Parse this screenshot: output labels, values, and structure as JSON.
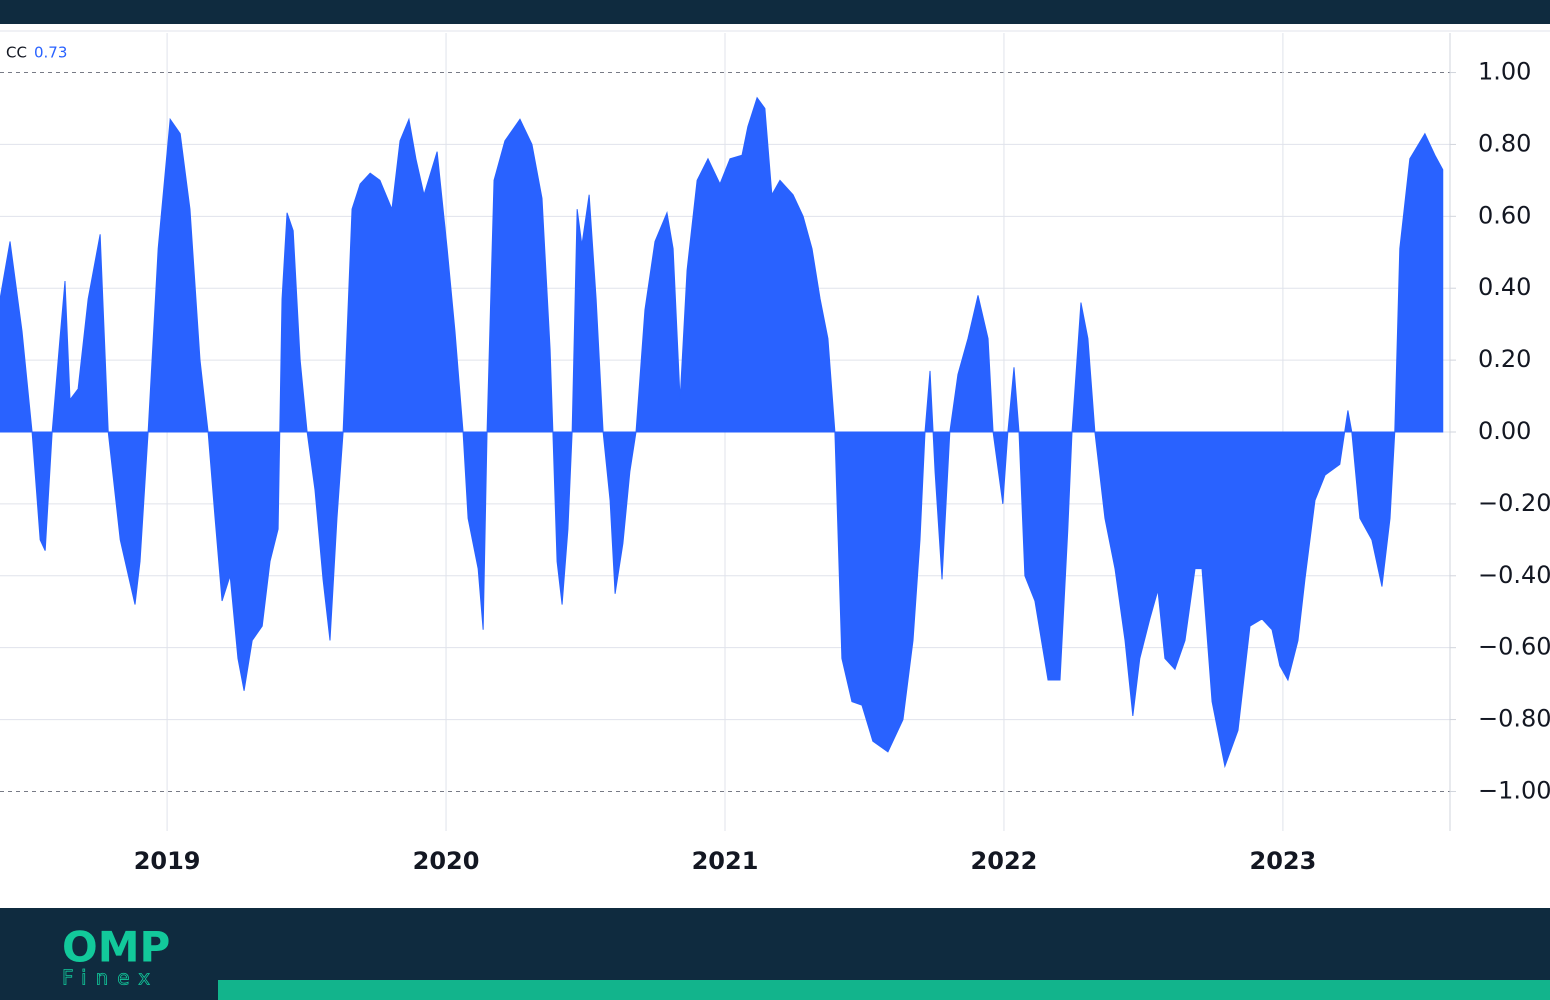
{
  "chart_data": {
    "type": "area",
    "xlim": [
      2018.401,
      2023.599
    ],
    "xticks": [
      2019,
      2020,
      2021,
      2022,
      2023
    ],
    "ylim": [
      -1.11,
      1.11
    ],
    "yticks": [
      {
        "value": 1,
        "label": "1.00"
      },
      {
        "value": 0.8,
        "label": "0.80"
      },
      {
        "value": 0.6,
        "label": "0.60"
      },
      {
        "value": 0.4,
        "label": "0.40"
      },
      {
        "value": 0.2,
        "label": "0.20"
      },
      {
        "value": 0,
        "label": "0.00"
      },
      {
        "value": -0.2,
        "label": "−0.20"
      },
      {
        "value": -0.4,
        "label": "−0.40"
      },
      {
        "value": -0.6,
        "label": "−0.60"
      },
      {
        "value": -0.8,
        "label": "−0.80"
      },
      {
        "value": -1,
        "label": "−1.00"
      }
    ],
    "dashed_lines": [
      1,
      -1
    ],
    "grid": true,
    "series": [
      {
        "name": "CC",
        "color": "#2962ff",
        "x": [
          2018.401,
          2018.437,
          2018.48,
          2018.516,
          2018.545,
          2018.563,
          2018.588,
          2018.616,
          2018.634,
          2018.652,
          2018.681,
          2018.717,
          2018.76,
          2018.789,
          2018.832,
          2018.885,
          2018.903,
          2018.932,
          2018.968,
          2019.011,
          2019.047,
          2019.082,
          2019.118,
          2019.147,
          2019.172,
          2019.197,
          2019.226,
          2019.254,
          2019.276,
          2019.305,
          2019.341,
          2019.369,
          2019.398,
          2019.412,
          2019.43,
          2019.452,
          2019.477,
          2019.502,
          2019.53,
          2019.559,
          2019.584,
          2019.609,
          2019.631,
          2019.663,
          2019.692,
          2019.728,
          2019.763,
          2019.806,
          2019.835,
          2019.867,
          2019.892,
          2019.921,
          2019.968,
          2020.004,
          2020.032,
          2020.061,
          2020.079,
          2020.115,
          2020.133,
          2020.147,
          2020.172,
          2020.211,
          2020.265,
          2020.308,
          2020.344,
          2020.373,
          2020.383,
          2020.398,
          2020.416,
          2020.437,
          2020.452,
          2020.47,
          2020.487,
          2020.513,
          2020.538,
          2020.563,
          2020.588,
          2020.606,
          2020.634,
          2020.659,
          2020.681,
          2020.713,
          2020.749,
          2020.792,
          2020.814,
          2020.839,
          2020.864,
          2020.9,
          2020.939,
          2020.982,
          2021.018,
          2021.061,
          2021.082,
          2021.115,
          2021.143,
          2021.168,
          2021.197,
          2021.244,
          2021.28,
          2021.312,
          2021.341,
          2021.369,
          2021.394,
          2021.419,
          2021.455,
          2021.491,
          2021.53,
          2021.584,
          2021.638,
          2021.674,
          2021.699,
          2021.717,
          2021.735,
          2021.753,
          2021.778,
          2021.806,
          2021.835,
          2021.871,
          2021.907,
          2021.943,
          2021.961,
          2021.996,
          2022.014,
          2022.036,
          2022.054,
          2022.075,
          2022.111,
          2022.158,
          2022.201,
          2022.229,
          2022.244,
          2022.276,
          2022.301,
          2022.326,
          2022.362,
          2022.398,
          2022.434,
          2022.462,
          2022.487,
          2022.523,
          2022.552,
          2022.577,
          2022.613,
          2022.649,
          2022.685,
          2022.71,
          2022.746,
          2022.792,
          2022.839,
          2022.882,
          2022.925,
          2022.961,
          2022.989,
          2023.018,
          2023.054,
          2023.079,
          2023.115,
          2023.151,
          2023.204,
          2023.233,
          2023.247,
          2023.276,
          2023.319,
          2023.355,
          2023.384,
          2023.401,
          2023.419,
          2023.455,
          2023.509,
          2023.545,
          2023.573
        ],
        "values": [
          0.37,
          0.53,
          0.28,
          0,
          -0.3,
          -0.33,
          0,
          0.26,
          0.42,
          0.09,
          0.12,
          0.37,
          0.55,
          0,
          -0.3,
          -0.48,
          -0.36,
          0,
          0.51,
          0.87,
          0.83,
          0.62,
          0.2,
          0,
          -0.24,
          -0.47,
          -0.4,
          -0.63,
          -0.72,
          -0.58,
          -0.54,
          -0.36,
          -0.27,
          0.37,
          0.61,
          0.56,
          0.2,
          0,
          -0.16,
          -0.41,
          -0.58,
          -0.24,
          0,
          0.62,
          0.69,
          0.72,
          0.7,
          0.62,
          0.81,
          0.87,
          0.76,
          0.66,
          0.78,
          0.51,
          0.28,
          0,
          -0.24,
          -0.38,
          -0.55,
          0,
          0.7,
          0.81,
          0.87,
          0.8,
          0.65,
          0.23,
          0,
          -0.36,
          -0.48,
          -0.27,
          0,
          0.62,
          0.52,
          0.66,
          0.37,
          0,
          -0.19,
          -0.45,
          -0.31,
          -0.11,
          0,
          0.34,
          0.53,
          0.61,
          0.51,
          0.09,
          0.45,
          0.7,
          0.76,
          0.69,
          0.76,
          0.77,
          0.85,
          0.93,
          0.9,
          0.66,
          0.7,
          0.66,
          0.6,
          0.51,
          0.37,
          0.26,
          0,
          -0.63,
          -0.75,
          -0.76,
          -0.86,
          -0.89,
          -0.8,
          -0.58,
          -0.3,
          0,
          0.17,
          -0.11,
          -0.41,
          0,
          0.16,
          0.26,
          0.38,
          0.26,
          0,
          -0.2,
          0,
          0.18,
          0,
          -0.4,
          -0.47,
          -0.69,
          -0.69,
          -0.27,
          0,
          0.36,
          0.26,
          0,
          -0.24,
          -0.38,
          -0.58,
          -0.79,
          -0.63,
          -0.52,
          -0.44,
          -0.63,
          -0.66,
          -0.58,
          -0.38,
          -0.38,
          -0.75,
          -0.93,
          -0.83,
          -0.54,
          -0.52,
          -0.55,
          -0.65,
          -0.69,
          -0.58,
          -0.41,
          -0.19,
          -0.12,
          -0.09,
          0.06,
          0,
          -0.24,
          -0.3,
          -0.43,
          -0.24,
          0,
          0.51,
          0.76,
          0.83,
          0.77,
          0.73
        ]
      }
    ]
  },
  "brand": {
    "name": "OMP",
    "tagline": "Finex"
  }
}
